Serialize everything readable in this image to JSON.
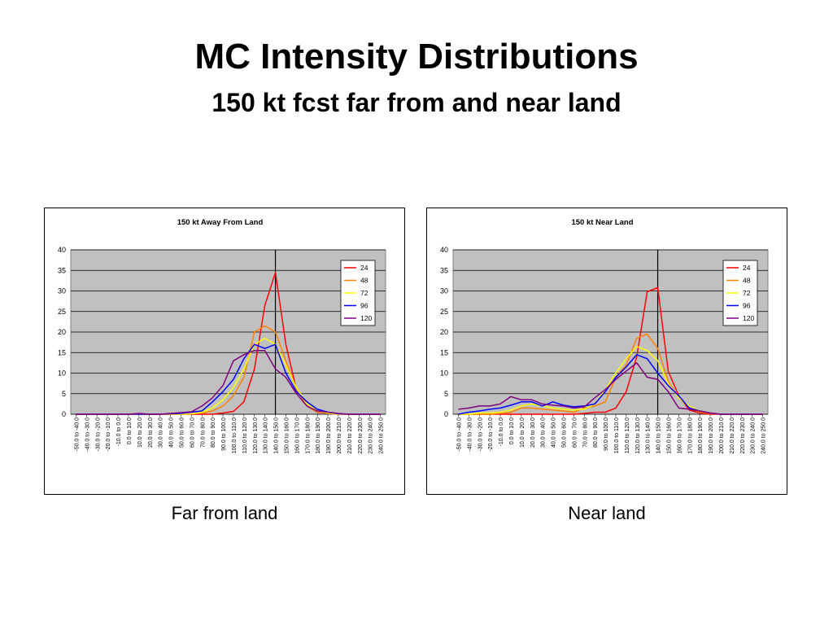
{
  "slide": {
    "title": "MC Intensity Distributions",
    "subtitle": "150 kt fcst far from and near land"
  },
  "captions": {
    "left": "Far from land",
    "right": "Near land"
  },
  "chart_data": [
    {
      "type": "line",
      "title": "150 kt  Away From Land",
      "xlabel": "",
      "ylabel": "",
      "ylim": [
        0,
        40
      ],
      "yticks": [
        0,
        5,
        10,
        15,
        20,
        25,
        30,
        35,
        40
      ],
      "grid": true,
      "legend_position": "top-right",
      "reference_line_at_category": "140.0 to 150.0",
      "categories": [
        "-50.0 to -40.0",
        "-40.0 to -30.0",
        "-30.0 to -20.0",
        "-20.0 to -10.0",
        "-10.0 to 0.0",
        "0.0 to 10.0",
        "10.0 to 20.0",
        "20.0 to 30.0",
        "30.0 to 40.0",
        "40.0 to 50.0",
        "50.0 to 60.0",
        "60.0 to 70.0",
        "70.0 to 80.0",
        "80.0 to 90.0",
        "90.0 to 100.0",
        "100.0 to 110.0",
        "110.0 to 120.0",
        "120.0 to 130.0",
        "130.0 to 140.0",
        "140.0 to 150.0",
        "150.0 to 160.0",
        "160.0 to 170.0",
        "170.0 to 180.0",
        "180.0 to 190.0",
        "190.0 to 200.0",
        "200.0 to 210.0",
        "210.0 to 220.0",
        "220.0 to 230.0",
        "230.0 to 240.0",
        "240.0 to 250.0"
      ],
      "series": [
        {
          "name": "24",
          "color": "#ff0000",
          "values": [
            0,
            0,
            0,
            0,
            0,
            0,
            0,
            0,
            0,
            0,
            0,
            0,
            0,
            0,
            0.3,
            0.7,
            3,
            11,
            26.5,
            34.5,
            17,
            6,
            2,
            0.5,
            0.2,
            0,
            0,
            0,
            0,
            0
          ]
        },
        {
          "name": "48",
          "color": "#ff8000",
          "values": [
            0,
            0,
            0,
            0,
            0,
            0,
            0,
            0,
            0,
            0,
            0,
            0.1,
            0.3,
            0.8,
            2,
            4.5,
            9,
            20,
            21.5,
            20,
            13,
            6,
            2,
            0.6,
            0.2,
            0,
            0,
            0,
            0,
            0
          ]
        },
        {
          "name": "72",
          "color": "#ffff00",
          "values": [
            0,
            0,
            0,
            0,
            0,
            0,
            0,
            0,
            0,
            0,
            0,
            0.1,
            0.5,
            1.5,
            3.5,
            6.5,
            11,
            17,
            18.5,
            17,
            12,
            6.5,
            2.5,
            0.8,
            0.3,
            0,
            0,
            0,
            0,
            0
          ]
        },
        {
          "name": "96",
          "color": "#0000ff",
          "values": [
            0,
            0,
            0,
            0,
            0,
            0,
            0,
            0,
            0,
            0.1,
            0.2,
            0.5,
            0.8,
            3,
            5.5,
            8.5,
            13.5,
            17,
            16,
            17,
            10,
            5.5,
            3,
            1.2,
            0.5,
            0.1,
            0,
            0,
            0,
            0
          ]
        },
        {
          "name": "120",
          "color": "#800080",
          "values": [
            0,
            0,
            0,
            0,
            0,
            0,
            0.2,
            0,
            0,
            0.2,
            0.4,
            0.6,
            2,
            4,
            7,
            13,
            14.5,
            15.5,
            15.5,
            11,
            9,
            5,
            2,
            0.8,
            0.5,
            0.2,
            0,
            0,
            0,
            0
          ]
        }
      ]
    },
    {
      "type": "line",
      "title": "150 kt  Near Land",
      "xlabel": "",
      "ylabel": "",
      "ylim": [
        0,
        40
      ],
      "yticks": [
        0,
        5,
        10,
        15,
        20,
        25,
        30,
        35,
        40
      ],
      "grid": true,
      "legend_position": "top-right",
      "reference_line_at_category": "140.0 to 150.0",
      "categories": [
        "-50.0 to -40.0",
        "-40.0 to -30.0",
        "-30.0 to -20.0",
        "-20.0 to -10.0",
        "-10.0 to 0.0",
        "0.0 to 10.0",
        "10.0 to 20.0",
        "20.0 to 30.0",
        "30.0 to 40.0",
        "40.0 to 50.0",
        "50.0 to 60.0",
        "60.0 to 70.0",
        "70.0 to 80.0",
        "80.0 to 90.0",
        "90.0 to 100.0",
        "100.0 to 110.0",
        "110.0 to 120.0",
        "120.0 to 130.0",
        "130.0 to 140.0",
        "140.0 to 150.0",
        "150.0 to 160.0",
        "160.0 to 170.0",
        "170.0 to 180.0",
        "180.0 to 190.0",
        "190.0 to 200.0",
        "200.0 to 210.0",
        "210.0 to 220.0",
        "220.0 to 230.0",
        "230.0 to 240.0",
        "240.0 to 250.0"
      ],
      "series": [
        {
          "name": "24",
          "color": "#ff0000",
          "values": [
            0,
            0,
            0,
            0,
            0,
            0,
            0,
            0,
            0,
            0,
            0,
            0,
            0.2,
            0.5,
            0.5,
            1.5,
            5.5,
            14,
            29.8,
            30.8,
            10.5,
            4.5,
            1,
            0.3,
            0,
            0,
            0,
            0,
            0,
            0
          ]
        },
        {
          "name": "48",
          "color": "#ff8000",
          "values": [
            0,
            0,
            0,
            0,
            0.2,
            0.5,
            1.5,
            1.5,
            1.2,
            1,
            0.8,
            0.5,
            1.5,
            2,
            3,
            9,
            12,
            18.5,
            19.5,
            16,
            8,
            4,
            1.5,
            0.5,
            0.2,
            0,
            0,
            0,
            0,
            0
          ]
        },
        {
          "name": "72",
          "color": "#ffff00",
          "values": [
            0,
            0,
            0.3,
            0.3,
            0.5,
            1,
            2,
            2.5,
            2,
            1.5,
            1.2,
            1,
            1.2,
            2.5,
            6,
            10,
            13.5,
            16.5,
            15.5,
            13,
            7.5,
            4,
            2,
            0.8,
            0.3,
            0,
            0,
            0,
            0,
            0
          ]
        },
        {
          "name": "96",
          "color": "#0000ff",
          "values": [
            0,
            0.5,
            0.8,
            1.2,
            1.5,
            2.2,
            3,
            3,
            2,
            3,
            2.2,
            1.8,
            2,
            2.5,
            5.5,
            9,
            11.5,
            14.5,
            13.5,
            10,
            7,
            4.5,
            1.5,
            0.8,
            0.3,
            0,
            0,
            0,
            0,
            0
          ]
        },
        {
          "name": "120",
          "color": "#800080",
          "values": [
            1.2,
            1.5,
            2,
            2,
            2.5,
            4.3,
            3.5,
            3.5,
            2.5,
            2.2,
            2,
            1.5,
            1.8,
            4,
            6,
            8.5,
            10.5,
            12.5,
            9,
            8.5,
            5.5,
            1.5,
            1.2,
            0.8,
            0.3,
            0,
            0,
            0,
            0,
            0
          ]
        }
      ]
    }
  ]
}
